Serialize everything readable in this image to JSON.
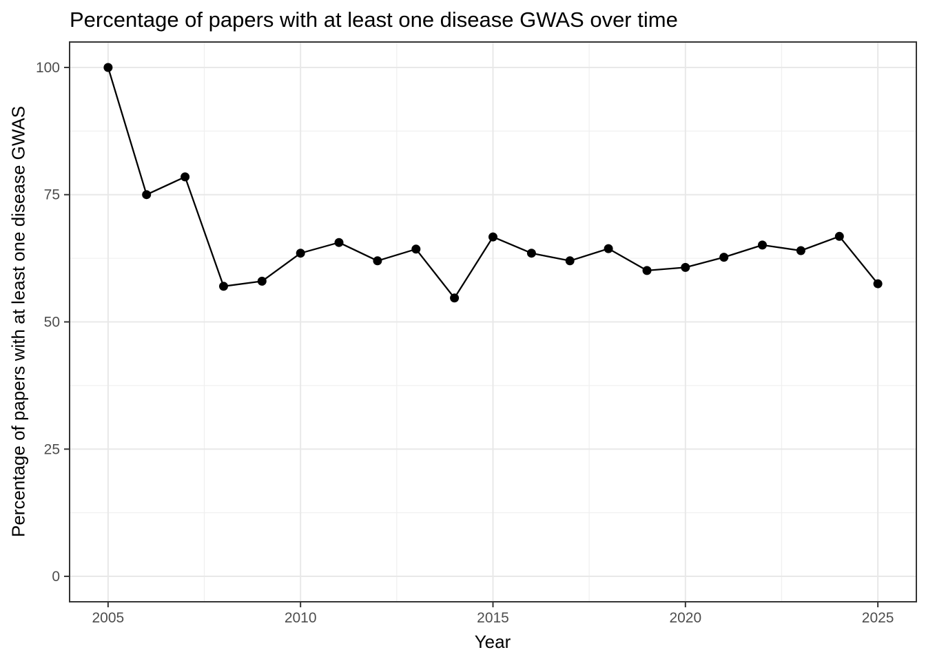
{
  "chart_data": {
    "type": "line",
    "title": "Percentage of papers with at least one disease GWAS over time",
    "xlabel": "Year",
    "ylabel": "Percentage of papers with at least one disease GWAS",
    "x": [
      2005,
      2006,
      2007,
      2008,
      2009,
      2010,
      2011,
      2012,
      2013,
      2014,
      2015,
      2016,
      2017,
      2018,
      2019,
      2020,
      2021,
      2022,
      2023,
      2024,
      2025
    ],
    "values": [
      100,
      75,
      78.5,
      57,
      58,
      63.5,
      65.6,
      62,
      64.3,
      54.7,
      66.7,
      63.5,
      62,
      64.4,
      60.1,
      60.7,
      62.7,
      65.1,
      64,
      66.8,
      57.5
    ],
    "x_tick_labels": [
      "2005",
      "2010",
      "2015",
      "2020",
      "2025"
    ],
    "x_ticks": [
      2005,
      2010,
      2015,
      2020,
      2025
    ],
    "x_minor_ticks": [
      2007.5,
      2012.5,
      2017.5,
      2022.5
    ],
    "y_tick_labels": [
      "0",
      "25",
      "50",
      "75",
      "100"
    ],
    "y_ticks": [
      0,
      25,
      50,
      75,
      100
    ],
    "y_minor_ticks": [
      12.5,
      37.5,
      62.5,
      87.5
    ],
    "xlim": [
      2004,
      2026
    ],
    "ylim": [
      -5,
      105
    ],
    "grid": true,
    "legend": "none",
    "colors": {
      "series": "#000000",
      "grid_major": "#e8e8e8",
      "grid_minor": "#f0f0f0",
      "panel_border": "#333333",
      "tick_mark": "#333333",
      "tick_text": "#4d4d4d",
      "background": "#ffffff",
      "title_text": "#000000"
    }
  }
}
